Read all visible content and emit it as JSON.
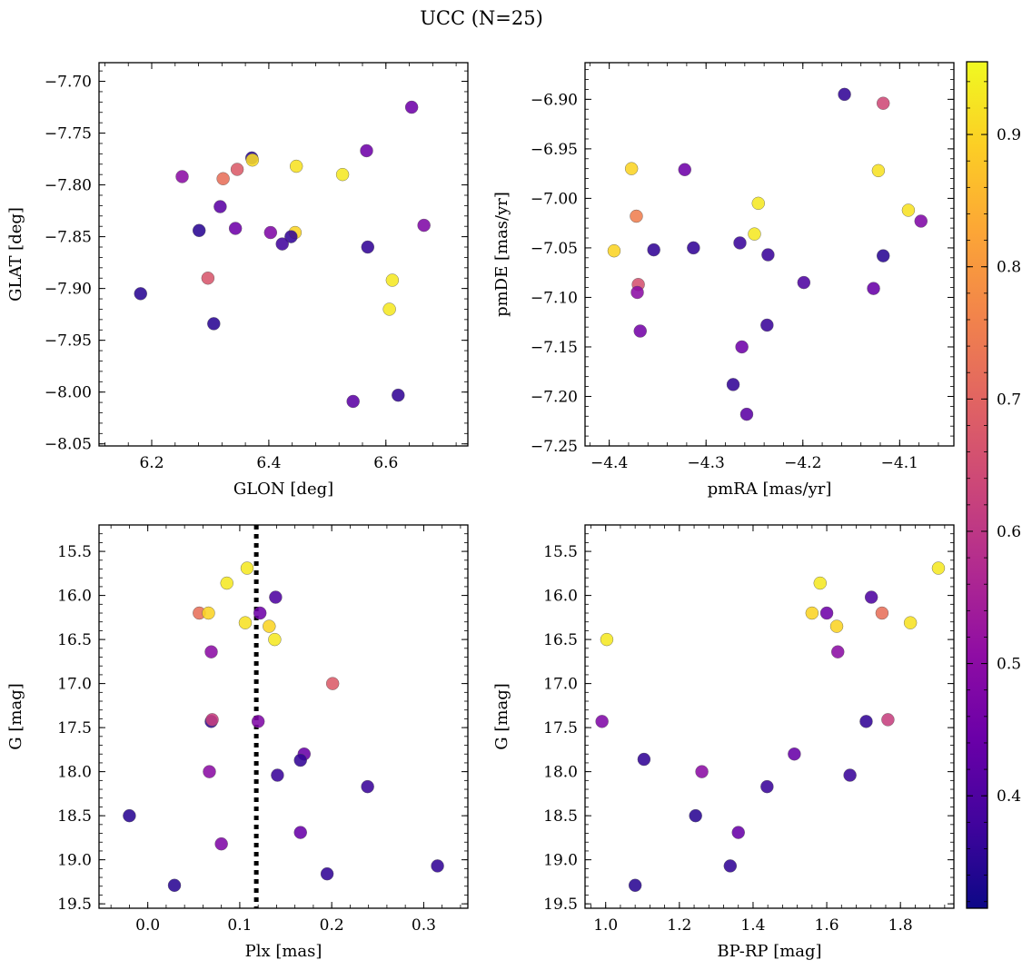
{
  "figure": {
    "title": "UCC (N=25)",
    "colorbar": {
      "colormap": "plasma",
      "range": [
        0.315,
        0.955
      ],
      "ticks": [
        0.4,
        0.5,
        0.6,
        0.7,
        0.8,
        0.9
      ],
      "tick_labels": [
        "0.4",
        "0.5",
        "0.6",
        "0.7",
        "0.8",
        "0.9"
      ]
    }
  },
  "chart_data": [
    {
      "type": "scatter",
      "title": "",
      "xlabel": "GLON [deg]",
      "ylabel": "GLAT [deg]",
      "xlim": [
        6.11,
        6.74
      ],
      "ylim": [
        -8.052,
        -7.682
      ],
      "y_inverted": false,
      "xticks": [
        6.2,
        6.4,
        6.6
      ],
      "xtick_labels": [
        "6.2",
        "6.4",
        "6.6"
      ],
      "yticks": [
        -7.7,
        -7.75,
        -7.8,
        -7.85,
        -7.9,
        -7.95,
        -8.0,
        -8.05
      ],
      "ytick_labels": [
        "−7.70",
        "−7.75",
        "−7.80",
        "−7.85",
        "−7.90",
        "−7.95",
        "−8.00",
        "−8.05"
      ],
      "points": [
        {
          "x": 6.644,
          "y": -7.725,
          "c": 0.45
        },
        {
          "x": 6.567,
          "y": -7.767,
          "c": 0.45
        },
        {
          "x": 6.371,
          "y": -7.774,
          "c": 0.35
        },
        {
          "x": 6.372,
          "y": -7.776,
          "c": 0.91
        },
        {
          "x": 6.447,
          "y": -7.782,
          "c": 0.92
        },
        {
          "x": 6.346,
          "y": -7.785,
          "c": 0.68
        },
        {
          "x": 6.526,
          "y": -7.79,
          "c": 0.93
        },
        {
          "x": 6.252,
          "y": -7.792,
          "c": 0.5
        },
        {
          "x": 6.322,
          "y": -7.794,
          "c": 0.72
        },
        {
          "x": 6.317,
          "y": -7.821,
          "c": 0.42
        },
        {
          "x": 6.665,
          "y": -7.839,
          "c": 0.48
        },
        {
          "x": 6.343,
          "y": -7.842,
          "c": 0.45
        },
        {
          "x": 6.281,
          "y": -7.844,
          "c": 0.35
        },
        {
          "x": 6.403,
          "y": -7.846,
          "c": 0.48
        },
        {
          "x": 6.445,
          "y": -7.846,
          "c": 0.9
        },
        {
          "x": 6.438,
          "y": -7.85,
          "c": 0.36
        },
        {
          "x": 6.423,
          "y": -7.857,
          "c": 0.38
        },
        {
          "x": 6.569,
          "y": -7.86,
          "c": 0.36
        },
        {
          "x": 6.296,
          "y": -7.89,
          "c": 0.67
        },
        {
          "x": 6.611,
          "y": -7.892,
          "c": 0.93
        },
        {
          "x": 6.181,
          "y": -7.905,
          "c": 0.35
        },
        {
          "x": 6.606,
          "y": -7.92,
          "c": 0.93
        },
        {
          "x": 6.306,
          "y": -7.934,
          "c": 0.35
        },
        {
          "x": 6.544,
          "y": -8.009,
          "c": 0.42
        },
        {
          "x": 6.621,
          "y": -8.003,
          "c": 0.36
        }
      ]
    },
    {
      "type": "scatter",
      "title": "",
      "xlabel": "pmRA [mas/yr]",
      "ylabel": "pmDE [mas/yr]",
      "xlim": [
        -4.425,
        -4.044
      ],
      "ylim": [
        -7.25,
        -6.863
      ],
      "y_inverted": false,
      "xticks": [
        -4.4,
        -4.3,
        -4.2,
        -4.1
      ],
      "xtick_labels": [
        "−4.4",
        "−4.3",
        "−4.2",
        "−4.1"
      ],
      "yticks": [
        -6.9,
        -6.95,
        -7.0,
        -7.05,
        -7.1,
        -7.15,
        -7.2,
        -7.25
      ],
      "ytick_labels": [
        "−6.90",
        "−6.95",
        "−7.00",
        "−7.05",
        "−7.10",
        "−7.15",
        "−7.20",
        "−7.25"
      ],
      "points": [
        {
          "x": -4.157,
          "y": -6.895,
          "c": 0.36
        },
        {
          "x": -4.117,
          "y": -6.904,
          "c": 0.64
        },
        {
          "x": -4.377,
          "y": -6.97,
          "c": 0.9
        },
        {
          "x": -4.322,
          "y": -6.971,
          "c": 0.45
        },
        {
          "x": -4.122,
          "y": -6.972,
          "c": 0.92
        },
        {
          "x": -4.246,
          "y": -7.005,
          "c": 0.93
        },
        {
          "x": -4.091,
          "y": -7.012,
          "c": 0.92
        },
        {
          "x": -4.372,
          "y": -7.018,
          "c": 0.75
        },
        {
          "x": -4.078,
          "y": -7.023,
          "c": 0.48
        },
        {
          "x": -4.25,
          "y": -7.036,
          "c": 0.93
        },
        {
          "x": -4.265,
          "y": -7.045,
          "c": 0.37
        },
        {
          "x": -4.313,
          "y": -7.05,
          "c": 0.36
        },
        {
          "x": -4.354,
          "y": -7.052,
          "c": 0.36
        },
        {
          "x": -4.395,
          "y": -7.053,
          "c": 0.9
        },
        {
          "x": -4.236,
          "y": -7.057,
          "c": 0.37
        },
        {
          "x": -4.117,
          "y": -7.058,
          "c": 0.35
        },
        {
          "x": -4.199,
          "y": -7.085,
          "c": 0.4
        },
        {
          "x": -4.37,
          "y": -7.087,
          "c": 0.66
        },
        {
          "x": -4.127,
          "y": -7.091,
          "c": 0.44
        },
        {
          "x": -4.371,
          "y": -7.095,
          "c": 0.5
        },
        {
          "x": -4.237,
          "y": -7.128,
          "c": 0.37
        },
        {
          "x": -4.368,
          "y": -7.134,
          "c": 0.46
        },
        {
          "x": -4.263,
          "y": -7.15,
          "c": 0.45
        },
        {
          "x": -4.272,
          "y": -7.188,
          "c": 0.36
        },
        {
          "x": -4.258,
          "y": -7.218,
          "c": 0.42
        }
      ]
    },
    {
      "type": "scatter",
      "title": "",
      "xlabel": "Plx [mas]",
      "ylabel": "G [mag]",
      "xlim": [
        -0.053,
        0.348
      ],
      "ylim": [
        15.2,
        19.55
      ],
      "y_inverted": true,
      "xticks": [
        0.0,
        0.1,
        0.2,
        0.3
      ],
      "xtick_labels": [
        "0.0",
        "0.1",
        "0.2",
        "0.3"
      ],
      "yticks": [
        15.5,
        16.0,
        16.5,
        17.0,
        17.5,
        18.0,
        18.5,
        19.0,
        19.5
      ],
      "ytick_labels": [
        "15.5",
        "16.0",
        "16.5",
        "17.0",
        "17.5",
        "18.0",
        "18.5",
        "19.0",
        "19.5"
      ],
      "vline": {
        "x": 0.118,
        "style": "dotted"
      },
      "points": [
        {
          "x": 0.108,
          "y": 15.69,
          "c": 0.93
        },
        {
          "x": 0.086,
          "y": 15.86,
          "c": 0.93
        },
        {
          "x": 0.139,
          "y": 16.02,
          "c": 0.4
        },
        {
          "x": 0.056,
          "y": 16.2,
          "c": 0.72
        },
        {
          "x": 0.066,
          "y": 16.2,
          "c": 0.9
        },
        {
          "x": 0.122,
          "y": 16.2,
          "c": 0.45
        },
        {
          "x": 0.106,
          "y": 16.31,
          "c": 0.92
        },
        {
          "x": 0.132,
          "y": 16.35,
          "c": 0.9
        },
        {
          "x": 0.138,
          "y": 16.5,
          "c": 0.93
        },
        {
          "x": 0.069,
          "y": 16.64,
          "c": 0.5
        },
        {
          "x": 0.201,
          "y": 17.0,
          "c": 0.68
        },
        {
          "x": 0.069,
          "y": 17.43,
          "c": 0.36
        },
        {
          "x": 0.07,
          "y": 17.41,
          "c": 0.62
        },
        {
          "x": 0.12,
          "y": 17.43,
          "c": 0.48
        },
        {
          "x": 0.17,
          "y": 17.8,
          "c": 0.44
        },
        {
          "x": 0.166,
          "y": 17.87,
          "c": 0.36
        },
        {
          "x": 0.067,
          "y": 18.0,
          "c": 0.5
        },
        {
          "x": 0.141,
          "y": 18.04,
          "c": 0.37
        },
        {
          "x": 0.239,
          "y": 18.17,
          "c": 0.37
        },
        {
          "x": -0.02,
          "y": 18.5,
          "c": 0.35
        },
        {
          "x": 0.166,
          "y": 18.69,
          "c": 0.44
        },
        {
          "x": 0.08,
          "y": 18.82,
          "c": 0.48
        },
        {
          "x": 0.315,
          "y": 19.07,
          "c": 0.36
        },
        {
          "x": 0.195,
          "y": 19.16,
          "c": 0.36
        },
        {
          "x": 0.029,
          "y": 19.29,
          "c": 0.35
        }
      ]
    },
    {
      "type": "scatter",
      "title": "",
      "xlabel": "BP-RP [mag]",
      "ylabel": "G [mag]",
      "xlim": [
        0.944,
        1.945
      ],
      "ylim": [
        15.2,
        19.55
      ],
      "y_inverted": true,
      "xticks": [
        1.0,
        1.2,
        1.4,
        1.6,
        1.8
      ],
      "xtick_labels": [
        "1.0",
        "1.2",
        "1.4",
        "1.6",
        "1.8"
      ],
      "yticks": [
        15.5,
        16.0,
        16.5,
        17.0,
        17.5,
        18.0,
        18.5,
        19.0,
        19.5
      ],
      "ytick_labels": [
        "15.5",
        "16.0",
        "16.5",
        "17.0",
        "17.5",
        "18.0",
        "18.5",
        "19.0",
        "19.5"
      ],
      "points": [
        {
          "x": 1.903,
          "y": 15.69,
          "c": 0.93
        },
        {
          "x": 1.582,
          "y": 15.86,
          "c": 0.93
        },
        {
          "x": 1.721,
          "y": 16.02,
          "c": 0.4
        },
        {
          "x": 1.6,
          "y": 16.2,
          "c": 0.45
        },
        {
          "x": 1.56,
          "y": 16.2,
          "c": 0.9
        },
        {
          "x": 1.75,
          "y": 16.2,
          "c": 0.72
        },
        {
          "x": 1.827,
          "y": 16.31,
          "c": 0.92
        },
        {
          "x": 1.627,
          "y": 16.35,
          "c": 0.9
        },
        {
          "x": 1.003,
          "y": 16.5,
          "c": 0.93
        },
        {
          "x": 1.63,
          "y": 16.64,
          "c": 0.5
        },
        {
          "x": 1.766,
          "y": 17.41,
          "c": 0.62
        },
        {
          "x": 1.707,
          "y": 17.43,
          "c": 0.36
        },
        {
          "x": 0.99,
          "y": 17.43,
          "c": 0.48
        },
        {
          "x": 1.512,
          "y": 17.8,
          "c": 0.44
        },
        {
          "x": 1.104,
          "y": 17.86,
          "c": 0.36
        },
        {
          "x": 1.261,
          "y": 18.0,
          "c": 0.5
        },
        {
          "x": 1.663,
          "y": 18.04,
          "c": 0.37
        },
        {
          "x": 1.438,
          "y": 18.17,
          "c": 0.37
        },
        {
          "x": 1.244,
          "y": 18.5,
          "c": 0.35
        },
        {
          "x": 1.36,
          "y": 18.69,
          "c": 0.44
        },
        {
          "x": 1.338,
          "y": 19.07,
          "c": 0.36
        },
        {
          "x": 1.08,
          "y": 19.29,
          "c": 0.35
        }
      ]
    }
  ]
}
